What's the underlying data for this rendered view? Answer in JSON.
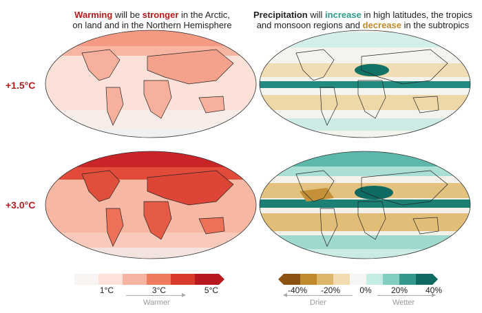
{
  "titles": {
    "warming": {
      "part1_bold": "Warming",
      "part2": " will be ",
      "part3_bold": "stronger",
      "part4": " in the Arctic,",
      "line2": "on land and in the Northern Hemisphere"
    },
    "precip": {
      "part1_bold": "Precipitation",
      "part2": " will ",
      "part3_bold": "increase",
      "part4": " in high latitudes, the tropics",
      "line2a": "and monsoon regions and ",
      "line2_bold": "decrease",
      "line2b": " in the subtropics"
    }
  },
  "rows": [
    {
      "label": "+1.5°C"
    },
    {
      "label": "+3.0°C"
    }
  ],
  "warming_legend": {
    "ticks": [
      "1°C",
      "3°C",
      "5°C"
    ],
    "arrow_label": "Warmer",
    "colors": [
      "#f7f4f2",
      "#fde2da",
      "#f7b4a2",
      "#ef7b5f",
      "#d83a2c",
      "#b7191f"
    ]
  },
  "precip_legend": {
    "ticks": [
      "-40%",
      "-20%",
      "0%",
      "20%",
      "40%"
    ],
    "drier_label": "Drier",
    "wetter_label": "Wetter",
    "colors": [
      "#8c5211",
      "#c08a2c",
      "#dcb66a",
      "#f0dcae",
      "#f5f5f3",
      "#c4ebe4",
      "#80cfc1",
      "#35988d",
      "#0f6b61"
    ]
  },
  "colors": {
    "warming_title": "#b31b1b",
    "increase_title": "#2f9a8a",
    "decrease_title": "#c08a2c",
    "row_label": "#b31b1b"
  }
}
